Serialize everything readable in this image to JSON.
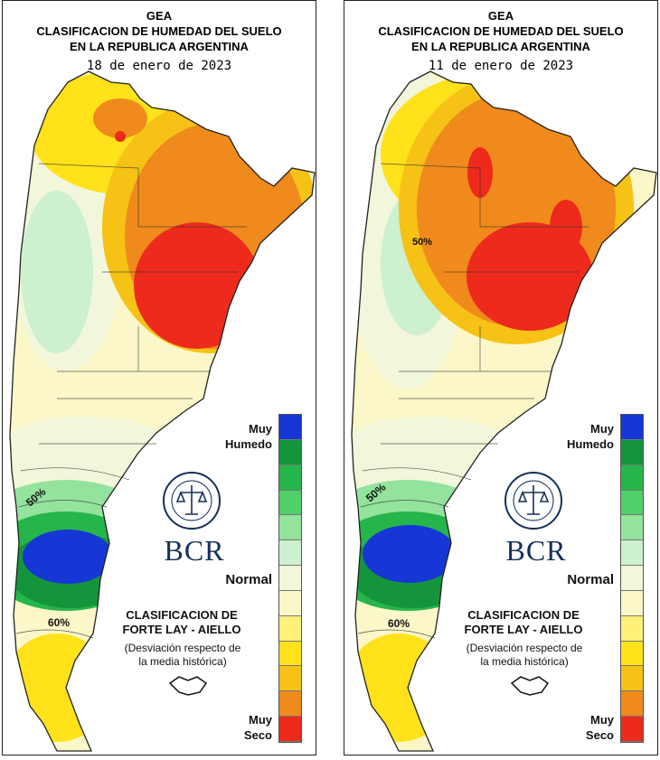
{
  "panels": [
    {
      "header": [
        "GEA",
        "CLASIFICACION DE HUMEDAD DEL SUELO",
        "EN LA REPUBLICA ARGENTINA"
      ],
      "date": "18 de enero de 2023",
      "contour_labels": [
        "50%",
        "60%"
      ]
    },
    {
      "header": [
        "GEA",
        "CLASIFICACION DE HUMEDAD DEL SUELO",
        "EN LA REPUBLICA ARGENTINA"
      ],
      "date": "11 de enero de 2023",
      "contour_labels": [
        "50%",
        "50%",
        "60%"
      ]
    }
  ],
  "legend": {
    "top_label": [
      "Muy",
      "Humedo"
    ],
    "middle_label": "Normal",
    "bottom_label": [
      "Muy",
      "Seco"
    ],
    "colors": [
      "#1637d6",
      "#14953c",
      "#26b54a",
      "#4fd068",
      "#93e39d",
      "#cdf0cf",
      "#f2f6da",
      "#fbf7c8",
      "#fff07a",
      "#ffe21a",
      "#f5c215",
      "#f08a1c",
      "#ee2a1c"
    ]
  },
  "classification": {
    "title": [
      "CLASIFICACION DE",
      "FORTE LAY - AIELLO"
    ],
    "subtitle": [
      "(Desviación respecto de",
      "la media histórica)"
    ]
  },
  "logo": {
    "name": "BCR"
  }
}
